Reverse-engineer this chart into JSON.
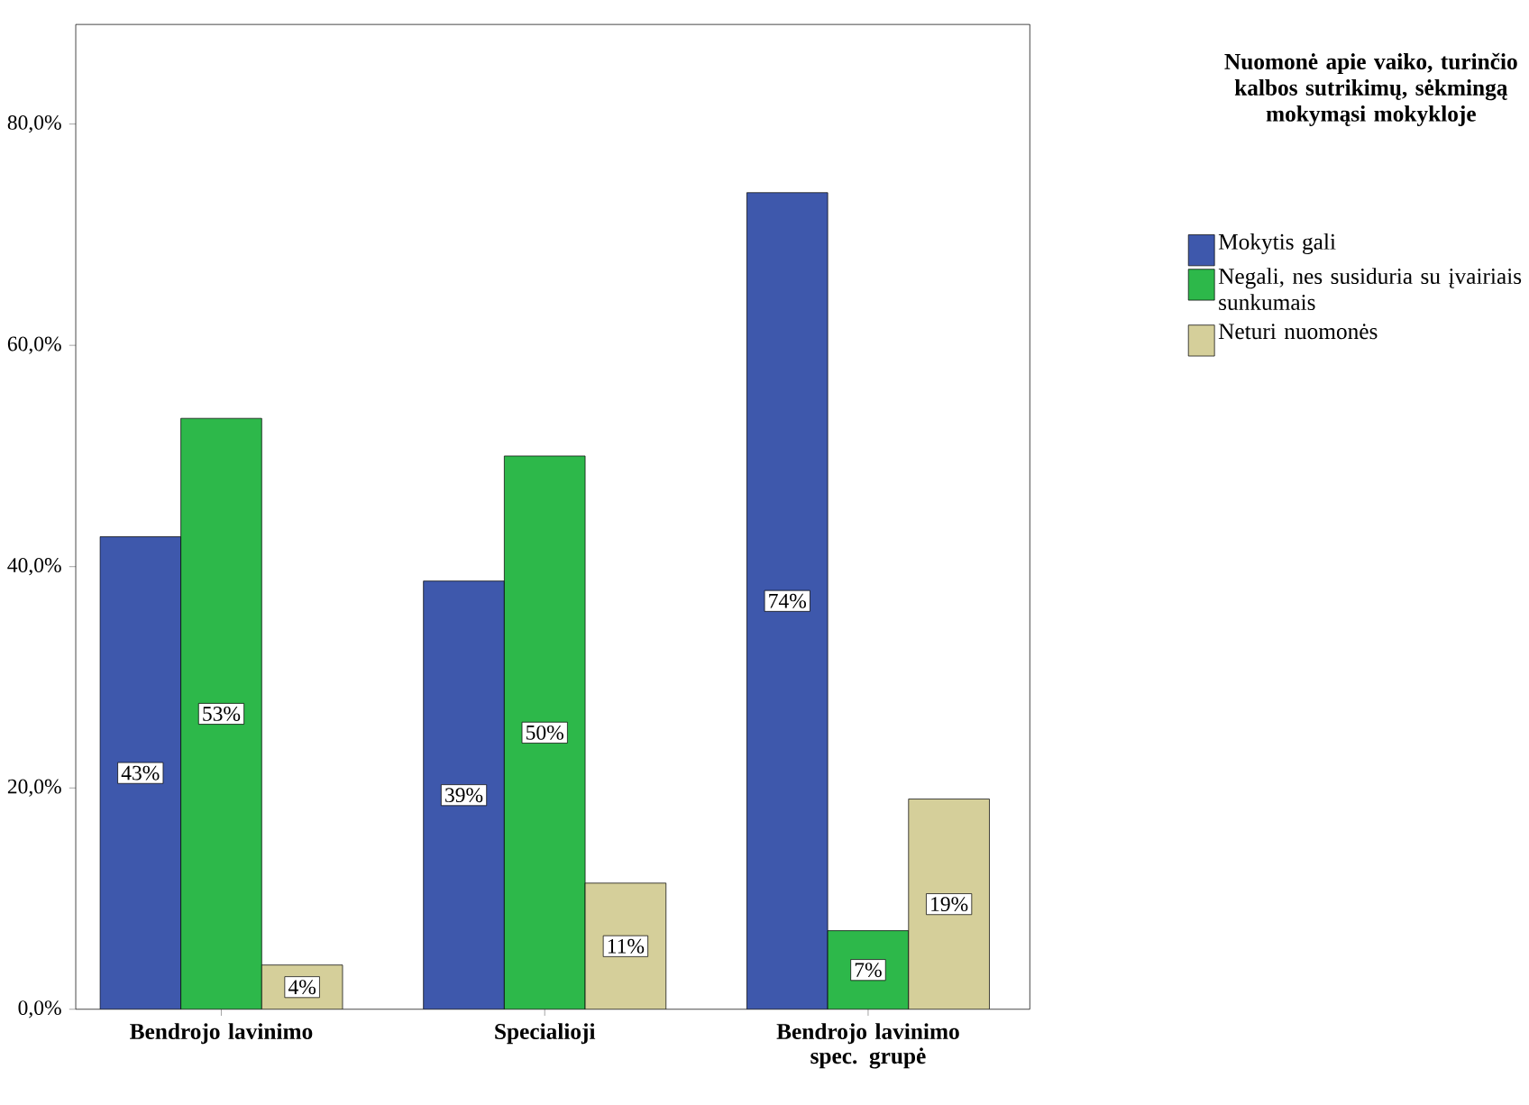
{
  "chart_data": {
    "type": "bar",
    "categories": [
      "Bendrojo lavinimo",
      "Specialioji",
      "Bendrojo lavinimo spec. grupė"
    ],
    "legend_title": "Nuomonė apie vaiko, turinčio kalbos sutrikimų, sėkmingą mokymąsi mokykloje",
    "legend": "right",
    "grid": false,
    "series": [
      {
        "name": "Mokytis gali",
        "color": "#3e58ac",
        "values": [
          42.7,
          38.7,
          73.8
        ],
        "value_labels": [
          "43%",
          "39%",
          "74%"
        ]
      },
      {
        "name": "Negali, nes susiduria su įvairiais sunkumais",
        "color": "#2db84a",
        "values": [
          53.4,
          50.0,
          7.1
        ],
        "value_labels": [
          "53%",
          "50%",
          "7%"
        ]
      },
      {
        "name": "Neturi nuomonės",
        "color": "#d5cf9a",
        "values": [
          4.0,
          11.4,
          19.0
        ],
        "value_labels": [
          "4%",
          "11%",
          "19%"
        ]
      }
    ],
    "ylim": [
      0,
      89
    ],
    "yticks": [
      {
        "value": 0,
        "label": "0,0%"
      },
      {
        "value": 20,
        "label": "20,0%"
      },
      {
        "value": 40,
        "label": "40,0%"
      },
      {
        "value": 60,
        "label": "60,0%"
      },
      {
        "value": 80,
        "label": "80,0%"
      }
    ]
  }
}
